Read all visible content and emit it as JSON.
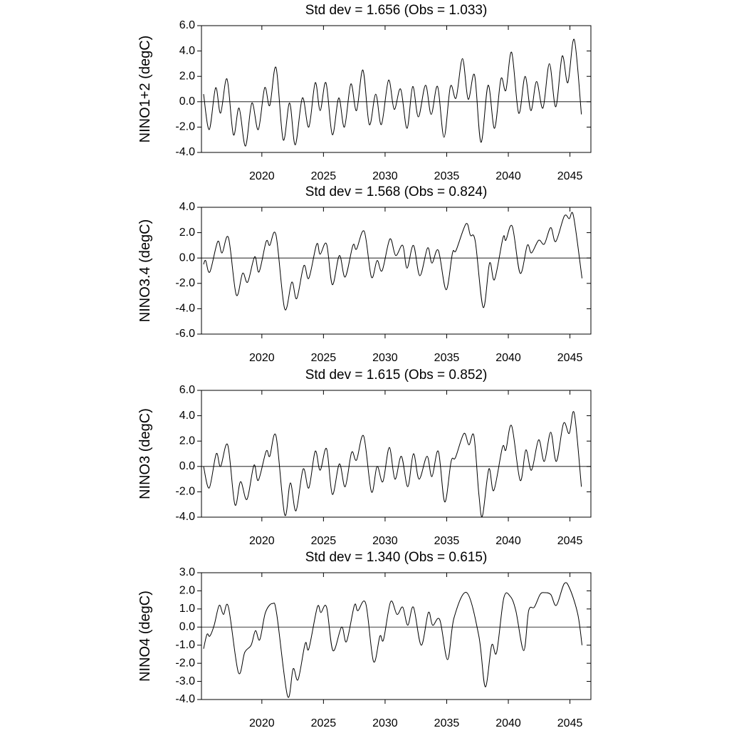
{
  "chart_data": [
    {
      "type": "line",
      "title": "Std dev = 1.656 (Obs = 1.033)",
      "y_label": "NINO1+2 (degC)",
      "color": "#000000",
      "xlim": [
        2015.1,
        2046.7
      ],
      "xticks": [
        2020,
        2025,
        2030,
        2035,
        2040,
        2045
      ],
      "ylim": [
        -4,
        6
      ],
      "yticks": [
        {
          "value": -4,
          "label": "-4.0"
        },
        {
          "value": -2,
          "label": "-2.0"
        },
        {
          "value": 0,
          "label": "0.0"
        },
        {
          "value": 2,
          "label": "2.0"
        },
        {
          "value": 4,
          "label": "4.0"
        },
        {
          "value": 6,
          "label": "6.0"
        }
      ],
      "x": [
        2015.27,
        2015.73,
        2016.25,
        2016.65,
        2017.17,
        2017.69,
        2018.15,
        2018.67,
        2019.19,
        2019.71,
        2020.23,
        2020.64,
        2021.15,
        2021.73,
        2022.25,
        2022.71,
        2023.29,
        2023.81,
        2024.33,
        2024.73,
        2025.2,
        2025.72,
        2026.24,
        2026.7,
        2027.22,
        2027.68,
        2028.2,
        2028.72,
        2029.24,
        2029.7,
        2030.28,
        2030.74,
        2031.26,
        2031.78,
        2032.24,
        2032.7,
        2033.28,
        2033.74,
        2034.26,
        2034.78,
        2035.3,
        2035.76,
        2036.28,
        2036.74,
        2037.26,
        2037.78,
        2038.36,
        2038.88,
        2039.4,
        2039.8,
        2040.27,
        2040.84,
        2041.36,
        2041.83,
        2042.29,
        2042.81,
        2043.33,
        2043.85,
        2044.37,
        2044.83,
        2045.35,
        2045.93
      ],
      "values": [
        0.6,
        -2.2,
        1.1,
        -0.9,
        1.8,
        -2.6,
        -0.5,
        -3.5,
        -0.1,
        -2.2,
        1.1,
        -0.3,
        2.7,
        -3.0,
        -0.1,
        -3.4,
        0.3,
        -2.0,
        1.5,
        -0.7,
        1.5,
        -2.6,
        0.3,
        -2.0,
        1.4,
        -0.7,
        2.5,
        -1.8,
        0.6,
        -1.8,
        1.7,
        -0.6,
        1.0,
        -2.1,
        1.2,
        -1.2,
        1.3,
        -1.0,
        1.2,
        -2.8,
        1.2,
        0.3,
        3.4,
        0.2,
        2.1,
        -3.2,
        1.3,
        -2.1,
        1.8,
        0.9,
        3.9,
        -0.9,
        2.0,
        -0.7,
        1.6,
        -0.5,
        3.0,
        -0.4,
        3.6,
        1.5,
        4.9,
        -1.0
      ]
    },
    {
      "type": "line",
      "title": "Std dev = 1.568 (Obs = 0.824)",
      "y_label": "NINO3.4 (degC)",
      "color": "#000000",
      "xlim": [
        2015.1,
        2046.7
      ],
      "xticks": [
        2020,
        2025,
        2030,
        2035,
        2040,
        2045
      ],
      "ylim": [
        -6,
        4
      ],
      "yticks": [
        {
          "value": -6,
          "label": "-6.0"
        },
        {
          "value": -4,
          "label": "-4.0"
        },
        {
          "value": -2,
          "label": "-2.0"
        },
        {
          "value": 0,
          "label": "0.0"
        },
        {
          "value": 2,
          "label": "2.0"
        },
        {
          "value": 4,
          "label": "4.0"
        }
      ],
      "x": [
        2015.27,
        2015.44,
        2015.78,
        2016.42,
        2016.77,
        2017.29,
        2017.92,
        2018.44,
        2018.85,
        2019.42,
        2019.77,
        2020.35,
        2020.64,
        2021.15,
        2021.85,
        2022.43,
        2022.83,
        2023.41,
        2023.81,
        2024.45,
        2024.73,
        2025.25,
        2025.72,
        2026.29,
        2026.76,
        2027.39,
        2027.68,
        2028.31,
        2028.89,
        2029.35,
        2029.76,
        2030.39,
        2030.86,
        2031.43,
        2031.78,
        2032.3,
        2032.82,
        2033.45,
        2033.8,
        2034.32,
        2034.95,
        2035.47,
        2035.76,
        2036.57,
        2036.92,
        2037.32,
        2037.96,
        2038.48,
        2038.88,
        2039.57,
        2039.8,
        2040.32,
        2040.96,
        2041.54,
        2041.88,
        2042.46,
        2042.92,
        2043.44,
        2043.85,
        2044.54,
        2044.94,
        2045.29,
        2045.98
      ],
      "values": [
        -0.5,
        -0.2,
        -1.1,
        1.3,
        0.4,
        1.6,
        -2.9,
        -1.2,
        -1.9,
        0.1,
        -1.1,
        1.3,
        1.0,
        1.8,
        -4.0,
        -1.9,
        -3.2,
        -0.6,
        -1.6,
        1.1,
        0.3,
        1.1,
        -2.1,
        0.2,
        -1.5,
        1.0,
        0.7,
        2.1,
        -1.5,
        -0.2,
        -1.0,
        1.5,
        0.2,
        1.0,
        -0.8,
        1.0,
        -1.4,
        0.8,
        -0.4,
        0.6,
        -2.5,
        0.4,
        0.6,
        2.7,
        1.8,
        1.3,
        -3.9,
        -0.4,
        -1.7,
        1.6,
        1.4,
        2.5,
        -1.2,
        1.0,
        0.4,
        1.4,
        1.1,
        2.4,
        1.3,
        3.3,
        3.1,
        3.3,
        -1.6
      ]
    },
    {
      "type": "line",
      "title": "Std dev = 1.615 (Obs = 0.852)",
      "y_label": "NINO3 (degC)",
      "color": "#000000",
      "xlim": [
        2015.1,
        2046.7
      ],
      "xticks": [
        2020,
        2025,
        2030,
        2035,
        2040,
        2045
      ],
      "ylim": [
        -4,
        6
      ],
      "yticks": [
        {
          "value": -4,
          "label": "-4.0"
        },
        {
          "value": -2,
          "label": "-2.0"
        },
        {
          "value": 0,
          "label": "0.0"
        },
        {
          "value": 2,
          "label": "2.0"
        },
        {
          "value": 4,
          "label": "4.0"
        },
        {
          "value": 6,
          "label": "6.0"
        }
      ],
      "x": [
        2015.27,
        2015.73,
        2016.3,
        2016.65,
        2017.23,
        2017.81,
        2018.27,
        2018.79,
        2019.36,
        2019.71,
        2020.35,
        2020.64,
        2021.15,
        2021.85,
        2022.31,
        2022.77,
        2023.35,
        2023.81,
        2024.33,
        2024.73,
        2025.25,
        2025.72,
        2026.29,
        2026.76,
        2027.28,
        2027.68,
        2028.26,
        2028.89,
        2029.35,
        2029.82,
        2030.34,
        2030.8,
        2031.32,
        2031.84,
        2032.3,
        2032.76,
        2033.4,
        2033.8,
        2034.32,
        2034.84,
        2035.36,
        2035.71,
        2036.4,
        2036.8,
        2037.21,
        2037.61,
        2037.9,
        2038.42,
        2038.82,
        2039.52,
        2039.8,
        2040.27,
        2040.96,
        2041.42,
        2041.88,
        2042.46,
        2042.92,
        2043.44,
        2043.9,
        2044.48,
        2044.94,
        2045.35,
        2045.93
      ],
      "values": [
        0.0,
        -1.7,
        1.0,
        0.0,
        1.7,
        -3.0,
        -1.2,
        -2.6,
        0.1,
        -1.1,
        1.2,
        0.8,
        2.4,
        -3.8,
        -1.3,
        -3.5,
        -0.2,
        -1.7,
        1.2,
        -0.3,
        1.4,
        -2.2,
        0.2,
        -1.6,
        1.1,
        0.5,
        2.4,
        -2.0,
        0.0,
        -1.2,
        1.5,
        -1.0,
        0.8,
        -1.6,
        1.0,
        -1.0,
        0.8,
        -0.8,
        1.2,
        -2.8,
        0.4,
        0.7,
        2.6,
        1.7,
        2.4,
        -2.2,
        -3.9,
        -0.2,
        -1.9,
        1.5,
        1.3,
        3.2,
        -1.1,
        1.3,
        -0.3,
        2.1,
        0.4,
        2.7,
        0.4,
        3.4,
        2.6,
        4.2,
        -1.6
      ]
    },
    {
      "type": "line",
      "title": "Std dev = 1.340 (Obs = 0.615)",
      "y_label": "NINO4 (degC)",
      "color": "#000000",
      "xlim": [
        2015.1,
        2046.7
      ],
      "xticks": [
        2020,
        2025,
        2030,
        2035,
        2040,
        2045
      ],
      "ylim": [
        -4,
        3
      ],
      "yticks": [
        {
          "value": -4,
          "label": "-4.0"
        },
        {
          "value": -3,
          "label": "-3.0"
        },
        {
          "value": -2,
          "label": "-2.0"
        },
        {
          "value": -1,
          "label": "-1.0"
        },
        {
          "value": 0,
          "label": "0.0"
        },
        {
          "value": 1,
          "label": "1.0"
        },
        {
          "value": 2,
          "label": "2.0"
        },
        {
          "value": 3,
          "label": "3.0"
        }
      ],
      "x": [
        2015.27,
        2015.55,
        2015.78,
        2016.13,
        2016.54,
        2016.88,
        2017.29,
        2018.09,
        2018.61,
        2019.13,
        2019.48,
        2019.83,
        2020.29,
        2020.87,
        2021.21,
        2022.08,
        2022.54,
        2022.94,
        2023.52,
        2023.81,
        2024.5,
        2024.79,
        2025.25,
        2025.77,
        2026.47,
        2026.87,
        2027.51,
        2027.79,
        2028.43,
        2029.06,
        2029.58,
        2029.87,
        2030.45,
        2030.97,
        2031.43,
        2031.84,
        2032.3,
        2032.93,
        2033.51,
        2033.86,
        2034.44,
        2035.07,
        2035.59,
        2036.63,
        2037.61,
        2038.13,
        2038.65,
        2039.05,
        2039.63,
        2040.15,
        2040.61,
        2041.25,
        2041.65,
        2042.11,
        2042.58,
        2042.92,
        2043.44,
        2043.9,
        2044.54,
        2045.0,
        2045.64,
        2045.98
      ],
      "values": [
        -1.2,
        -0.4,
        -0.5,
        0.1,
        1.2,
        0.7,
        1.1,
        -2.5,
        -1.4,
        -1.0,
        -0.2,
        -0.7,
        0.8,
        1.3,
        0.7,
        -3.8,
        -2.3,
        -2.9,
        -0.9,
        -1.2,
        1.1,
        0.8,
        1.1,
        -1.3,
        0.0,
        -0.8,
        1.2,
        0.9,
        1.3,
        -1.9,
        -0.5,
        -0.7,
        1.4,
        0.7,
        1.1,
        0.1,
        1.1,
        -1.0,
        0.8,
        0.1,
        0.4,
        -1.8,
        0.5,
        1.9,
        -0.5,
        -3.3,
        -1.0,
        -1.4,
        1.6,
        1.7,
        0.9,
        -1.3,
        0.9,
        1.1,
        1.8,
        1.9,
        1.8,
        1.2,
        2.4,
        2.1,
        0.7,
        -1.0
      ]
    }
  ]
}
